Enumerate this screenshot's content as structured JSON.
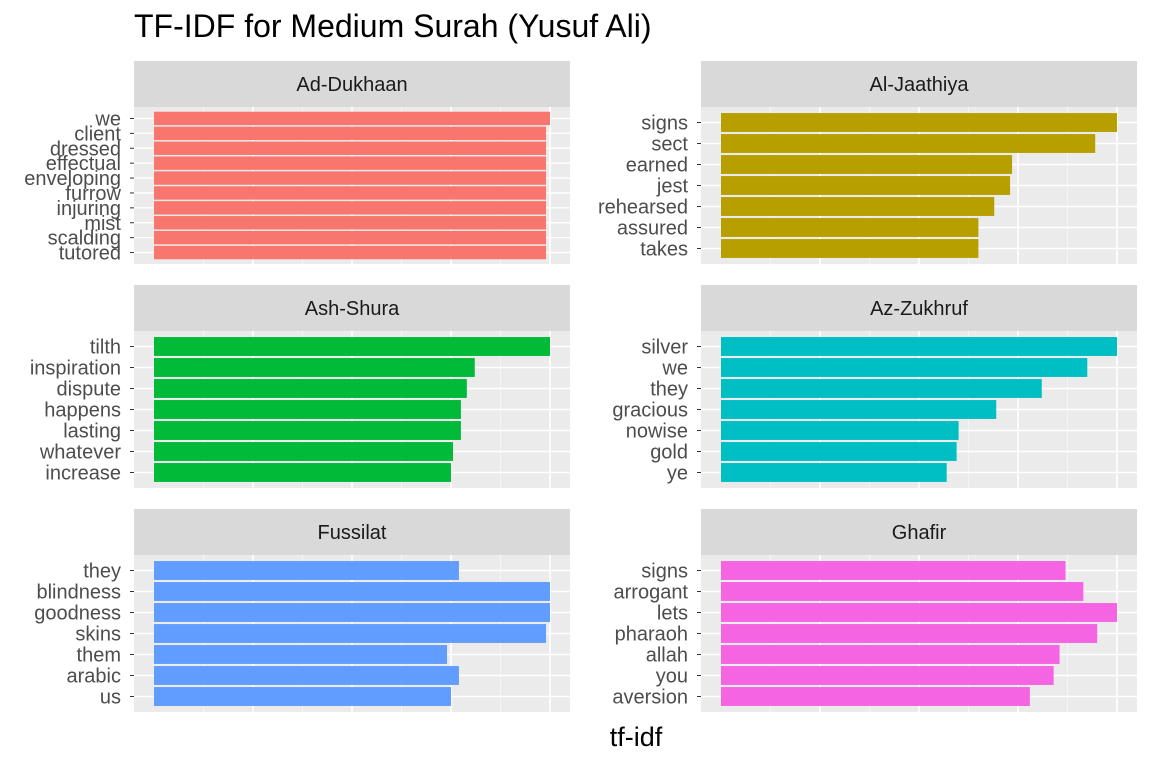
{
  "chart_data": {
    "type": "bar",
    "orientation": "horizontal",
    "title": "TF-IDF for Medium Surah (Yusuf Ali)",
    "xlabel": "tf-idf",
    "ylabel": "",
    "grid": true,
    "legend": "none",
    "facets": [
      {
        "panel": "Ad-Dukhaan",
        "color": "#F8766D",
        "categories": [
          "we",
          "client",
          "dressed",
          "effectual",
          "enveloping",
          "furrow",
          "injuring",
          "mist",
          "scalding",
          "tutored"
        ],
        "values": [
          1.0,
          0.99,
          0.99,
          0.99,
          0.99,
          0.99,
          0.99,
          0.99,
          0.99,
          0.99
        ]
      },
      {
        "panel": "Al-Jaathiya",
        "color": "#B79F00",
        "categories": [
          "signs",
          "sect",
          "earned",
          "jest",
          "rehearsed",
          "assured",
          "takes"
        ],
        "values": [
          1.0,
          0.945,
          0.735,
          0.73,
          0.69,
          0.65,
          0.65
        ]
      },
      {
        "panel": "Ash-Shura",
        "color": "#00BA38",
        "categories": [
          "tilth",
          "inspiration",
          "dispute",
          "happens",
          "lasting",
          "whatever",
          "increase"
        ],
        "values": [
          1.0,
          0.81,
          0.79,
          0.775,
          0.775,
          0.755,
          0.75
        ]
      },
      {
        "panel": "Az-Zukhruf",
        "color": "#00BFC4",
        "categories": [
          "silver",
          "we",
          "they",
          "gracious",
          "nowise",
          "gold",
          "ye"
        ],
        "values": [
          1.0,
          0.925,
          0.81,
          0.695,
          0.6,
          0.595,
          0.57
        ]
      },
      {
        "panel": "Fussilat",
        "color": "#619CFF",
        "categories": [
          "they",
          "blindness",
          "goodness",
          "skins",
          "them",
          "arabic",
          "us"
        ],
        "values": [
          0.77,
          1.0,
          1.0,
          0.99,
          0.74,
          0.77,
          0.75
        ]
      },
      {
        "panel": "Ghafir",
        "color": "#F564E3",
        "categories": [
          "signs",
          "arrogant",
          "lets",
          "pharaoh",
          "allah",
          "you",
          "aversion"
        ],
        "values": [
          0.87,
          0.915,
          1.0,
          0.95,
          0.855,
          0.84,
          0.78
        ]
      }
    ]
  }
}
